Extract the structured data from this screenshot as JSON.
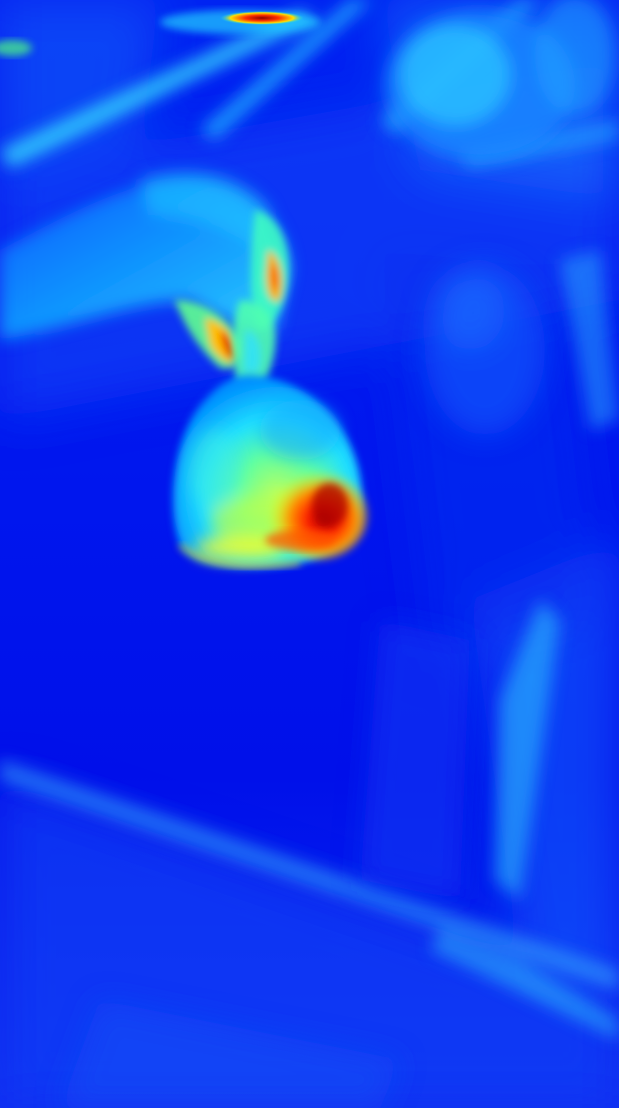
{
  "image": {
    "kind": "heatmap-overlay-photo",
    "colormap": "jet",
    "colors": {
      "low": "#0010e8",
      "mid_low": "#0060ff",
      "mid": "#00e0ff",
      "mid_high": "#ffff00",
      "high": "#ff4000",
      "peak": "#a00000"
    }
  }
}
